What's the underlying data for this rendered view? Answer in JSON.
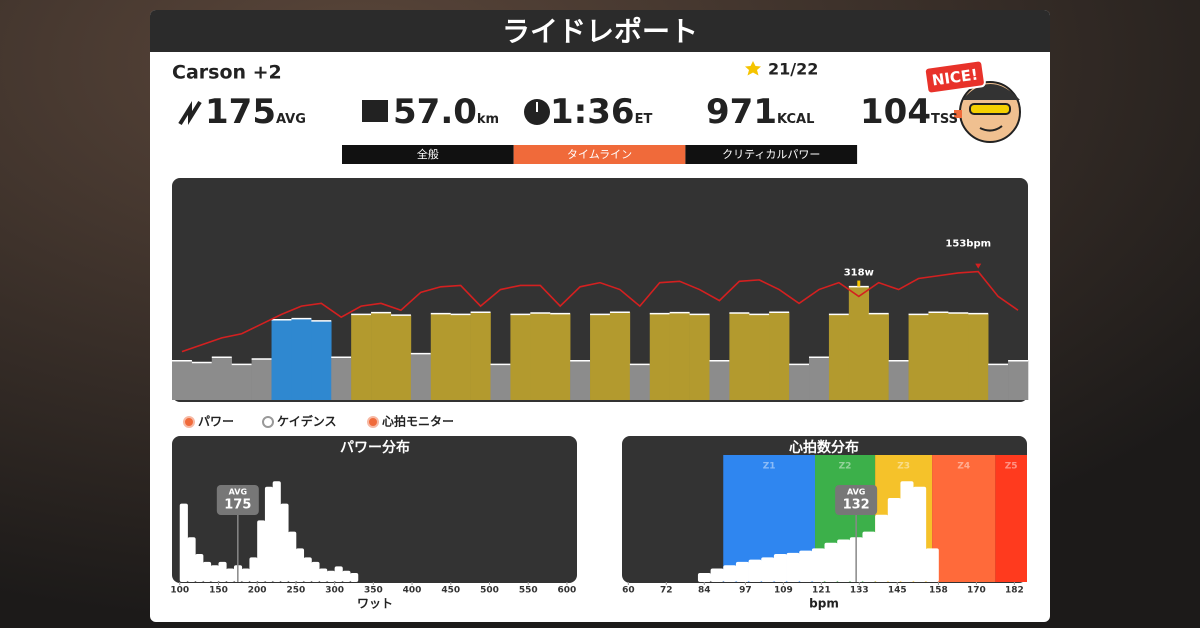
{
  "header": {
    "title": "ライドレポート"
  },
  "rider": {
    "name": "Carson +2",
    "stars": "21/22",
    "badge": "NICE!"
  },
  "stats": [
    {
      "value": "175",
      "unit": "AVG"
    },
    {
      "value": "57.0",
      "unit": "km"
    },
    {
      "value": "1:36",
      "unit": "ET"
    },
    {
      "value": "971",
      "unit": "KCAL"
    },
    {
      "value": "104",
      "unit": "TSS"
    }
  ],
  "tabs": {
    "items": [
      "全般",
      "タイムライン",
      "クリティカルパワー"
    ],
    "active": 1
  },
  "timeline": {
    "power": [
      110,
      105,
      120,
      100,
      115,
      225,
      228,
      222,
      120,
      240,
      245,
      238,
      130,
      242,
      240,
      246,
      100,
      240,
      244,
      242,
      110,
      240,
      246,
      100,
      242,
      245,
      240,
      110,
      244,
      240,
      246,
      100,
      120,
      240,
      318,
      242,
      110,
      240,
      246,
      244,
      242,
      100,
      110
    ],
    "heart_rate": [
      95,
      100,
      105,
      108,
      115,
      122,
      128,
      130,
      120,
      128,
      130,
      125,
      138,
      142,
      143,
      128,
      140,
      143,
      143,
      128,
      142,
      145,
      140,
      128,
      145,
      146,
      140,
      132,
      146,
      147,
      140,
      130,
      140,
      145,
      135,
      145,
      140,
      148,
      150,
      152,
      153,
      135,
      125
    ],
    "power_ylim": [
      0,
      600
    ],
    "hr_ylim": [
      60,
      215
    ],
    "power_colors": [
      {
        "from": 0,
        "color": "#8c8c8c"
      },
      {
        "from": 200,
        "color": "#2f88d0"
      },
      {
        "from": 235,
        "color": "#b39a2e"
      }
    ],
    "hr_color": "#d42020",
    "hr_peak": {
      "label": "153bpm",
      "value": 153
    },
    "power_peak": {
      "label": "318w",
      "value": 318
    }
  },
  "legend": [
    "パワー",
    "ケイデンス",
    "心拍モニター"
  ],
  "power_distribution": {
    "title": "パワー分布",
    "xlabel": "ワット",
    "xlim": [
      90,
      613
    ],
    "ylim": [
      0,
      100
    ],
    "xticks": [
      100,
      150,
      200,
      250,
      300,
      350,
      400,
      450,
      500,
      550,
      600
    ],
    "bins": [
      100,
      110,
      120,
      130,
      140,
      150,
      160,
      170,
      180,
      190,
      200,
      210,
      220,
      230,
      240,
      250,
      260,
      270,
      280,
      290,
      300,
      310,
      320,
      330
    ],
    "counts": [
      70,
      40,
      25,
      18,
      15,
      18,
      12,
      15,
      12,
      22,
      55,
      85,
      90,
      70,
      45,
      30,
      22,
      18,
      12,
      10,
      14,
      10,
      8
    ],
    "avg": {
      "label": "AVG",
      "value": 175
    }
  },
  "hr_distribution": {
    "title": "心拍数分布",
    "xlabel": "bpm",
    "xlim": [
      58,
      186
    ],
    "ylim": [
      0,
      100
    ],
    "xticks": [
      60,
      72,
      84,
      97,
      109,
      121,
      133,
      145,
      158,
      170,
      182
    ],
    "zones": [
      {
        "name": "Z1",
        "from": 90,
        "to": 119,
        "color": "#2f86f0"
      },
      {
        "name": "Z2",
        "from": 119,
        "to": 138,
        "color": "#3cb04a"
      },
      {
        "name": "Z3",
        "from": 138,
        "to": 156,
        "color": "#f5c22a"
      },
      {
        "name": "Z4",
        "from": 156,
        "to": 176,
        "color": "#ff6a3a"
      },
      {
        "name": "Z5",
        "from": 176,
        "to": 186,
        "color": "#ff3a1e"
      }
    ],
    "bins": [
      82,
      86,
      90,
      94,
      98,
      102,
      106,
      110,
      114,
      118,
      122,
      126,
      130,
      134,
      138,
      142,
      146,
      150,
      154,
      158
    ],
    "counts": [
      8,
      12,
      15,
      18,
      20,
      22,
      25,
      26,
      28,
      30,
      35,
      38,
      40,
      45,
      60,
      75,
      90,
      85,
      30
    ],
    "avg": {
      "label": "AVG",
      "value": 132
    }
  }
}
